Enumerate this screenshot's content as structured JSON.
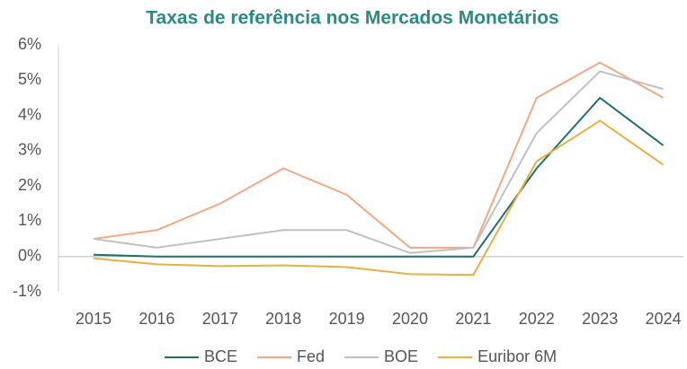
{
  "chart_data": {
    "type": "line",
    "title": "Taxas de referência nos Mercados Monetários",
    "categories": [
      "2015",
      "2016",
      "2017",
      "2018",
      "2019",
      "2020",
      "2021",
      "2022",
      "2023",
      "2024"
    ],
    "series": [
      {
        "name": "BCE",
        "color": "#1f6f6f",
        "values": [
          0.05,
          0,
          0,
          0,
          0,
          0,
          0,
          2.5,
          4.5,
          3.15
        ]
      },
      {
        "name": "Fed",
        "color": "#f2a882",
        "values": [
          0.5,
          0.75,
          1.5,
          2.5,
          1.75,
          0.25,
          0.25,
          4.5,
          5.5,
          4.5
        ]
      },
      {
        "name": "BOE",
        "color": "#c0c0c0",
        "values": [
          0.5,
          0.25,
          0.5,
          0.75,
          0.75,
          0.1,
          0.25,
          3.5,
          5.25,
          4.75
        ]
      },
      {
        "name": "Euribor 6M",
        "color": "#e8b040",
        "values": [
          -0.05,
          -0.22,
          -0.27,
          -0.25,
          -0.3,
          -0.5,
          -0.52,
          2.7,
          3.85,
          2.6
        ]
      }
    ],
    "ylim": [
      -1,
      6
    ],
    "yticks": [
      {
        "value": -1,
        "label": "-1%"
      },
      {
        "value": 0,
        "label": "0%"
      },
      {
        "value": 1,
        "label": "1%"
      },
      {
        "value": 2,
        "label": "2%"
      },
      {
        "value": 3,
        "label": "3%"
      },
      {
        "value": 4,
        "label": "4%"
      },
      {
        "value": 5,
        "label": "5%"
      },
      {
        "value": 6,
        "label": "6%"
      }
    ],
    "legend": "bottom"
  }
}
